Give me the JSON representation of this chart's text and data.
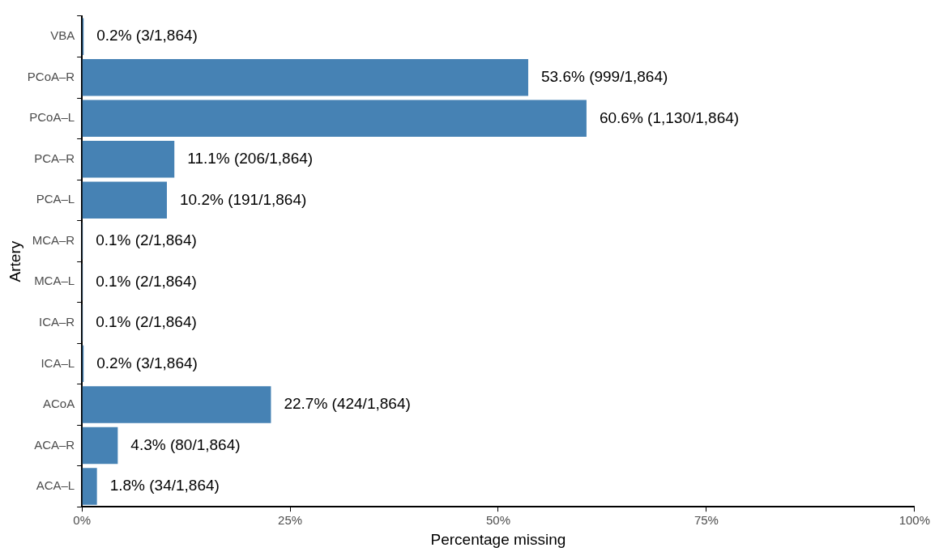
{
  "chart_data": {
    "type": "bar",
    "orientation": "horizontal",
    "xlabel": "Percentage missing",
    "ylabel": "Artery",
    "categories": [
      "VBA",
      "PCoA–R",
      "PCoA–L",
      "PCA–R",
      "PCA–L",
      "MCA–R",
      "MCA–L",
      "ICA–R",
      "ICA–L",
      "ACoA",
      "ACA–R",
      "ACA–L"
    ],
    "values": [
      0.2,
      53.6,
      60.6,
      11.1,
      10.2,
      0.1,
      0.1,
      0.1,
      0.2,
      22.7,
      4.3,
      1.8
    ],
    "value_labels": [
      "0.2% (3/1,864)",
      "53.6% (999/1,864)",
      "60.6% (1,130/1,864)",
      "11.1% (206/1,864)",
      "10.2% (191/1,864)",
      "0.1% (2/1,864)",
      "0.1% (2/1,864)",
      "0.1% (2/1,864)",
      "0.2% (3/1,864)",
      "22.7% (424/1,864)",
      "4.3% (80/1,864)",
      "1.8% (34/1,864)"
    ],
    "color": "#4682b4",
    "xlim": [
      0,
      100
    ],
    "xticks": [
      {
        "value": 0,
        "label": "0%"
      },
      {
        "value": 25,
        "label": "25%"
      },
      {
        "value": 50,
        "label": "50%"
      },
      {
        "value": 75,
        "label": "75%"
      },
      {
        "value": 100,
        "label": "100%"
      }
    ]
  }
}
